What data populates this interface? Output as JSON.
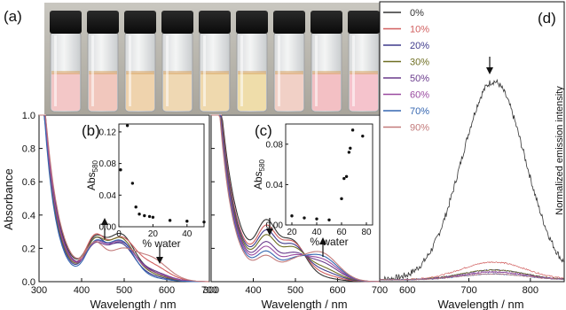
{
  "figure": {
    "panel_labels": [
      "(a)",
      "(b)",
      "(c)",
      "(d)"
    ]
  },
  "chart_data": [
    {
      "panel": "(a)",
      "type": "photo",
      "vials": 9,
      "liquid_colors": [
        "#f3c7c7",
        "#f1c7bd",
        "#efd3ad",
        "#efd8b3",
        "#efd9ae",
        "#efddaa",
        "#f1d0c6",
        "#f3c0c4",
        "#f5c3cc"
      ]
    },
    {
      "panel": "(b)",
      "type": "line",
      "xlabel": "Wavelength / nm",
      "ylabel": "Absorbance",
      "xlim": [
        300,
        700
      ],
      "ylim": [
        0.0,
        1.0
      ],
      "xticks": [
        "300",
        "400",
        "500",
        "600",
        "700"
      ],
      "yticks": [
        "0.0",
        "0.2",
        "0.4",
        "0.6",
        "0.8",
        "1.0"
      ],
      "series_colors": [
        "#333333",
        "#d15f5f",
        "#3f3a8c",
        "#6f6f23",
        "#6a3b8c",
        "#9a4aa0",
        "#3566b0",
        "#c27a7a"
      ],
      "inset": {
        "type": "scatter",
        "xlabel": "% water",
        "ylabel": "Abs",
        "ylabel_sub": "580",
        "xlim": [
          0,
          50
        ],
        "ylim": [
          0.0,
          0.13
        ],
        "xticks": [
          "0",
          "20",
          "40"
        ],
        "yticks": [
          "0.00",
          "0.04",
          "0.08",
          "0.12"
        ],
        "points": [
          [
            1,
            0.072
          ],
          [
            5,
            0.128
          ],
          [
            8,
            0.055
          ],
          [
            10,
            0.025
          ],
          [
            12,
            0.016
          ],
          [
            15,
            0.014
          ],
          [
            18,
            0.013
          ],
          [
            20,
            0.012
          ],
          [
            30,
            0.008
          ],
          [
            40,
            0.007
          ],
          [
            50,
            0.006
          ]
        ]
      }
    },
    {
      "panel": "(c)",
      "type": "line",
      "xlabel": "Wavelength / nm",
      "xlim": [
        300,
        700
      ],
      "ylim": [
        0.0,
        1.0
      ],
      "xticks": [
        "300",
        "400",
        "500",
        "600",
        "700"
      ],
      "series_colors": [
        "#333333",
        "#d15f5f",
        "#3f3a8c",
        "#6f6f23",
        "#6a3b8c",
        "#9a4aa0",
        "#3566b0",
        "#c27a7a"
      ],
      "inset": {
        "type": "scatter",
        "xlabel": "% water",
        "ylabel": "Abs",
        "ylabel_sub": "580",
        "xlim": [
          15,
          85
        ],
        "ylim": [
          0.0,
          0.1
        ],
        "xticks": [
          "20",
          "40",
          "60",
          "80"
        ],
        "yticks": [
          "0.00",
          "0.04",
          "0.08"
        ],
        "points": [
          [
            20,
            0.009
          ],
          [
            30,
            0.007
          ],
          [
            40,
            0.006
          ],
          [
            50,
            0.005
          ],
          [
            60,
            0.026
          ],
          [
            62,
            0.046
          ],
          [
            64,
            0.048
          ],
          [
            66,
            0.072
          ],
          [
            67,
            0.076
          ],
          [
            69,
            0.094
          ],
          [
            77,
            0.088
          ]
        ]
      }
    },
    {
      "panel": "(d)",
      "type": "line",
      "xlabel": "Wavelength / nm",
      "ylabel": "Normalized emission intensity",
      "xlim": [
        555,
        855
      ],
      "xticks": [
        "600",
        "700",
        "800"
      ],
      "legend": {
        "placement": "top-left",
        "entries": [
          {
            "label": "0%",
            "color": "#333333"
          },
          {
            "label": "10%",
            "color": "#d15f5f"
          },
          {
            "label": "20%",
            "color": "#3f3a8c"
          },
          {
            "label": "30%",
            "color": "#6f6f23"
          },
          {
            "label": "50%",
            "color": "#6a3b8c"
          },
          {
            "label": "60%",
            "color": "#9a4aa0"
          },
          {
            "label": "70%",
            "color": "#3566b0"
          },
          {
            "label": "90%",
            "color": "#c27a7a"
          }
        ]
      },
      "peak_nm": 740,
      "relative_peaks": [
        1.0,
        0.09,
        0.05,
        0.05,
        0.04,
        0.04,
        0.03,
        0.03
      ]
    }
  ]
}
